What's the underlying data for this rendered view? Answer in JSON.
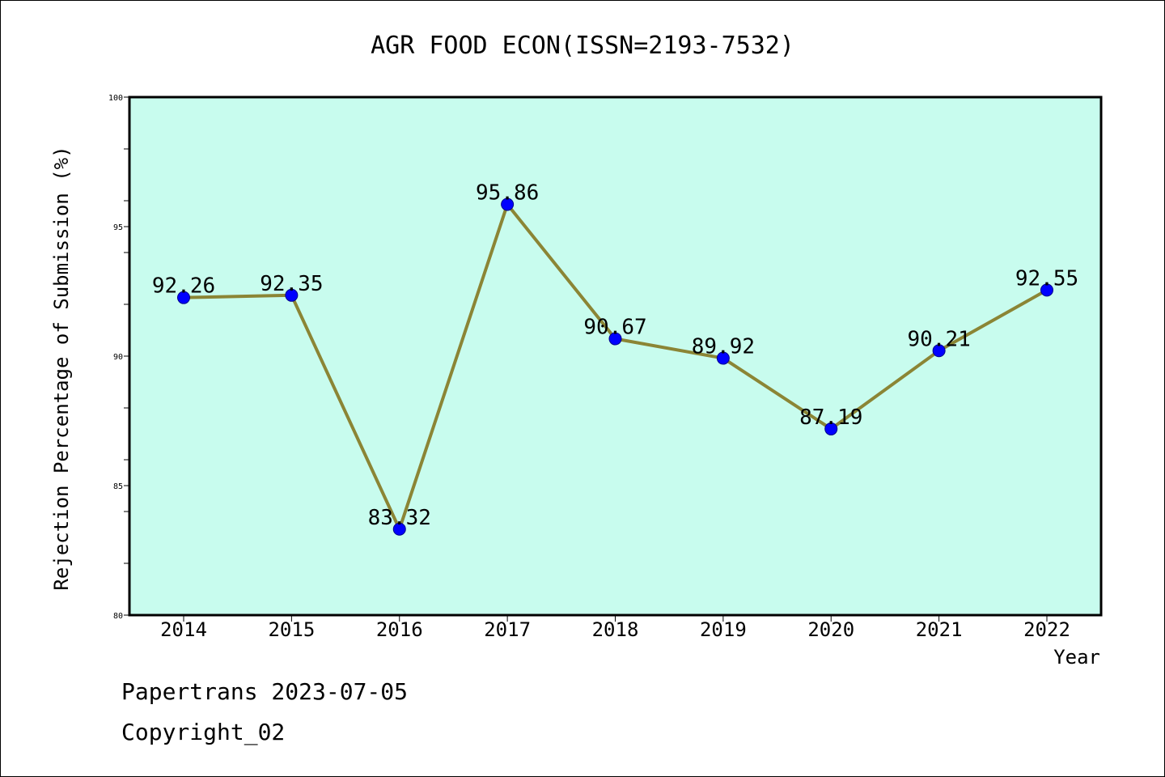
{
  "chart_data": {
    "type": "line",
    "title": "AGR FOOD ECON(ISSN=2193-7532)",
    "xlabel": "Year",
    "ylabel": "Rejection Percentage of Submission (%)",
    "categories": [
      "2014",
      "2015",
      "2016",
      "2017",
      "2018",
      "2019",
      "2020",
      "2021",
      "2022"
    ],
    "series": [
      {
        "values": [
          92.26,
          92.35,
          83.32,
          95.86,
          90.67,
          89.92,
          87.19,
          90.21,
          92.55
        ],
        "labels": [
          "92.26",
          "92.35",
          "83.32",
          "95.86",
          "90.67",
          "89.92",
          "87.19",
          "90.21",
          "92.55"
        ]
      }
    ],
    "ylim": [
      80,
      100
    ],
    "yticks": [
      80,
      85,
      90,
      95,
      100
    ],
    "ytick_labels": [
      "80",
      "85",
      "90",
      "95",
      "100"
    ],
    "grid": false,
    "colors": {
      "plot_background": "#c8fcee",
      "line": "#8b8535",
      "marker": "#0000ff"
    }
  },
  "footer": {
    "line1": "Papertrans 2023-07-05",
    "line2": "Copyright_02"
  }
}
